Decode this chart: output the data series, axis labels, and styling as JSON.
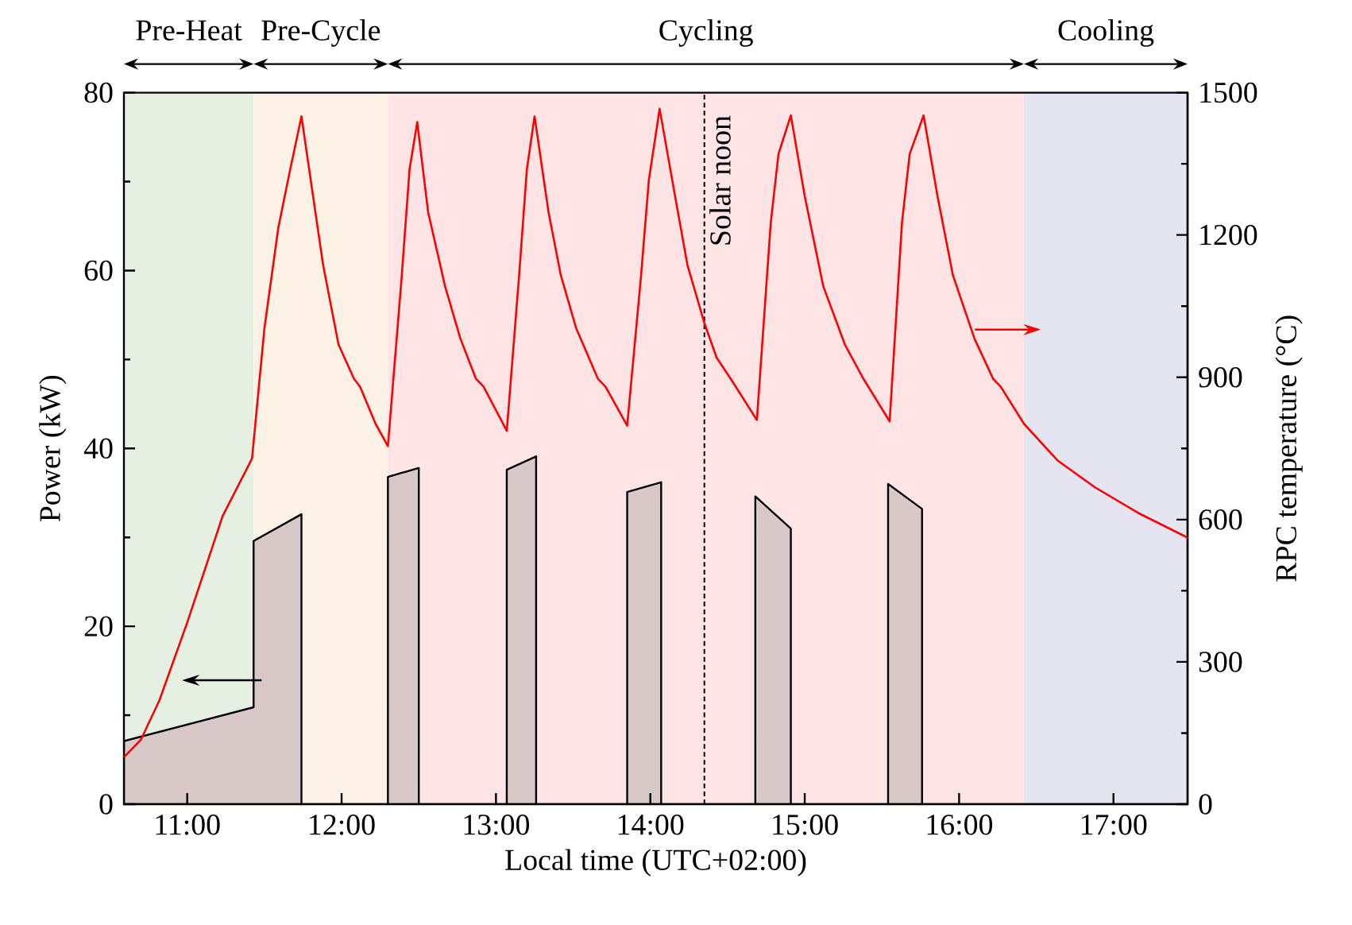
{
  "chart_data": {
    "type": "line",
    "xlabel": "Local time (UTC+02:00)",
    "ylabel": "Power (kW)",
    "y2label": "RPC temperature (°C)",
    "xlim": [
      10.59,
      17.48
    ],
    "ylim": [
      0,
      80
    ],
    "y2lim": [
      0,
      1500
    ],
    "xticks": [
      {
        "value": 11,
        "label": "11:00"
      },
      {
        "value": 12,
        "label": "12:00"
      },
      {
        "value": 13,
        "label": "13:00"
      },
      {
        "value": 14,
        "label": "14:00"
      },
      {
        "value": 15,
        "label": "15:00"
      },
      {
        "value": 16,
        "label": "16:00"
      },
      {
        "value": 17,
        "label": "17:00"
      }
    ],
    "yticks": [
      0,
      20,
      40,
      60,
      80
    ],
    "y2ticks": [
      0,
      300,
      600,
      900,
      1200,
      1500
    ],
    "series": [
      {
        "type": "area",
        "color": "#d8c8c8",
        "x": [
          10.59,
          11.43,
          11.43,
          11.74,
          11.74,
          12.3,
          12.3,
          12.5,
          12.5,
          13.07,
          13.07,
          13.26,
          13.26,
          13.85,
          13.85,
          14.07,
          14.07,
          14.68,
          14.68,
          14.91,
          14.91,
          15.54,
          15.54,
          15.76,
          15.76,
          17.48
        ],
        "values": [
          7.1,
          10.9,
          29.6,
          32.6,
          0,
          0,
          36.8,
          37.8,
          0,
          0,
          37.6,
          39.1,
          0,
          0,
          35.1,
          36.2,
          0,
          0,
          34.6,
          31.0,
          0,
          0,
          36.0,
          33.2,
          0,
          0
        ]
      },
      {
        "axis": "y2",
        "color": "#ff0000",
        "x": [
          10.59,
          10.7,
          10.82,
          11.0,
          11.23,
          11.4,
          11.42,
          11.5,
          11.59,
          11.66,
          11.74,
          11.79,
          11.88,
          11.98,
          12.08,
          12.12,
          12.22,
          12.3,
          12.39,
          12.44,
          12.49,
          12.56,
          12.67,
          12.77,
          12.87,
          12.92,
          13.07,
          13.15,
          13.2,
          13.25,
          13.34,
          13.42,
          13.52,
          13.66,
          13.71,
          13.85,
          13.94,
          13.99,
          14.06,
          14.16,
          14.24,
          14.35,
          14.43,
          14.52,
          14.69,
          14.78,
          14.83,
          14.91,
          15.0,
          15.12,
          15.26,
          15.38,
          15.55,
          15.63,
          15.68,
          15.77,
          15.86,
          15.96,
          16.1,
          16.22,
          16.27,
          16.42,
          16.64,
          16.88,
          17.16,
          17.48
        ],
        "values": [
          99,
          136,
          219,
          383,
          608,
          716,
          729,
          1003,
          1215,
          1327,
          1450,
          1338,
          1137,
          969,
          897,
          880,
          802,
          755,
          1115,
          1338,
          1438,
          1249,
          1092,
          981,
          897,
          880,
          787,
          1115,
          1338,
          1450,
          1249,
          1115,
          1003,
          897,
          880,
          798,
          1115,
          1315,
          1466,
          1282,
          1137,
          1014,
          941,
          897,
          810,
          1226,
          1371,
          1452,
          1282,
          1092,
          969,
          897,
          807,
          1226,
          1371,
          1452,
          1282,
          1115,
          981,
          897,
          880,
          802,
          724,
          668,
          614,
          562
        ]
      }
    ],
    "bands": [
      {
        "axis": "x",
        "from": 10.59,
        "to": 11.43,
        "label": "Pre-Heat",
        "color": "#e5f0e3"
      },
      {
        "axis": "x",
        "from": 11.43,
        "to": 12.3,
        "label": "Pre-Cycle",
        "color": "#fef2e6"
      },
      {
        "axis": "x",
        "from": 12.3,
        "to": 16.42,
        "label": "Cycling",
        "color": "#fee4e4"
      },
      {
        "axis": "x",
        "from": 16.42,
        "to": 17.48,
        "label": "Cooling",
        "color": "#e5e5f2"
      }
    ],
    "ref_lines": [
      {
        "axis": "x",
        "value": 14.35,
        "label": "Solar noon",
        "line_style": "dashed"
      }
    ]
  }
}
